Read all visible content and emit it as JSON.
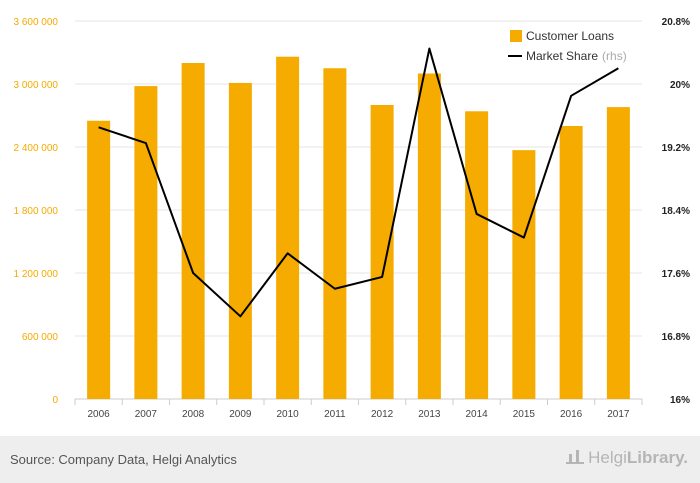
{
  "chart_data": {
    "type": "bar+line",
    "categories": [
      "2006",
      "2007",
      "2008",
      "2009",
      "2010",
      "2011",
      "2012",
      "2013",
      "2014",
      "2015",
      "2016",
      "2017"
    ],
    "series": [
      {
        "name": "Customer Loans",
        "type": "bar",
        "axis": "left",
        "color": "#f5ab00",
        "values": [
          2650000,
          2980000,
          3200000,
          3010000,
          3260000,
          3150000,
          2800000,
          3100000,
          2740000,
          2370000,
          2600000,
          2780000
        ]
      },
      {
        "name": "Market Share",
        "type": "line",
        "axis": "right",
        "color": "#000000",
        "values": [
          19.45,
          19.25,
          17.6,
          17.05,
          17.85,
          17.4,
          17.55,
          20.45,
          18.35,
          18.05,
          19.85,
          20.2
        ]
      }
    ],
    "left_axis": {
      "min": 0,
      "max": 3600000,
      "ticks": [
        "0",
        "600 000",
        "1 200 000",
        "1 800 000",
        "2 400 000",
        "3 000 000",
        "3 600 000"
      ]
    },
    "right_axis": {
      "min": 16,
      "max": 20.8,
      "ticks": [
        "16%",
        "16.8%",
        "17.6%",
        "18.4%",
        "19.2%",
        "20%",
        "20.8%"
      ]
    },
    "legend": {
      "position": "top-right",
      "items": [
        {
          "label": "Customer Loans",
          "suffix": ""
        },
        {
          "label": "Market Share",
          "suffix": "(rhs)"
        }
      ]
    },
    "grid": true
  },
  "footer": {
    "source": "Source: Company Data, Helgi Analytics",
    "logo_light": "Helgi",
    "logo_bold": "Library."
  }
}
